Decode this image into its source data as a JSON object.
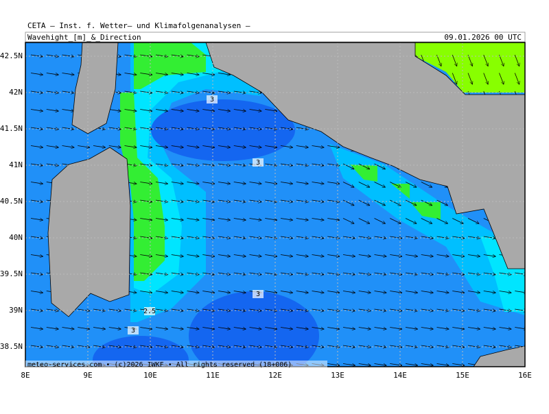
{
  "header": {
    "source": "CETA — Inst. f. Wetter— und Klimafolgenanalysen —",
    "product": "Wavehight_[m]_&_Direction",
    "datetime": "09.01.2026 00 UTC"
  },
  "map": {
    "lat_labels": [
      "42.5N",
      "42N",
      "41.5N",
      "41N",
      "40.5N",
      "40N",
      "39.5N",
      "39N",
      "38.5N"
    ],
    "lon_labels": [
      "8E",
      "9E",
      "10E",
      "11E",
      "12E",
      "13E",
      "14E",
      "15E",
      "16E"
    ],
    "contour_labels": [
      "3",
      "3",
      "3",
      "2.5",
      "3"
    ],
    "footer": "meteo-services.com • (c)2026 IWKF • All rights reserved (18+006)"
  }
}
